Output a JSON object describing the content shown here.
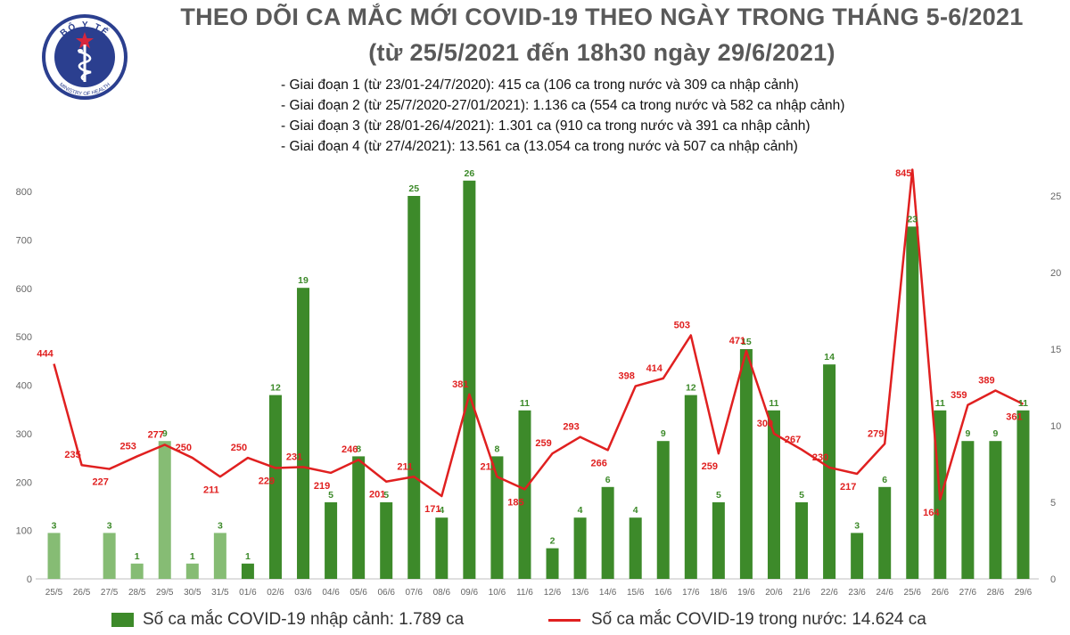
{
  "header": {
    "title_line1": "THEO DÕI CA MẮC MỚI COVID-19 THEO NGÀY TRONG THÁNG 5-6/2021",
    "title_line2": "(từ 25/5/2021 đến 18h30 ngày 29/6/2021)",
    "phases": [
      "- Giai đoạn 1 (từ 23/01-24/7/2020): 415 ca (106 ca trong nước và 309 ca nhập cảnh)",
      "- Giai đoạn 2 (từ 25/7/2020-27/01/2021): 1.136 ca (554 ca trong nước và 582 ca nhập cảnh)",
      "- Giai đoạn 3 (từ 28/01-26/4/2021): 1.301 ca (910 ca trong nước và 391 ca nhập cảnh)",
      "- Giai đoạn 4 (từ 27/4/2021): 13.561 ca (13.054 ca trong nước và 507 ca nhập cảnh)"
    ]
  },
  "logo": {
    "top_text": "BỘ Y TẾ",
    "bottom_text": "MINISTRY OF HEALTH",
    "color": "#2b3f8f"
  },
  "colors": {
    "bar_may": "#86bc74",
    "bar_june": "#3d8a2a",
    "line": "#e02020",
    "bar_label": "#3d8a2a",
    "line_label": "#e02020",
    "axis_text": "#666666"
  },
  "chart_data": {
    "type": "bar+line",
    "categories": [
      "25/5",
      "26/5",
      "27/5",
      "28/5",
      "29/5",
      "30/5",
      "31/5",
      "01/6",
      "02/6",
      "03/6",
      "04/6",
      "05/6",
      "06/6",
      "07/6",
      "08/6",
      "09/6",
      "10/6",
      "11/6",
      "12/6",
      "13/6",
      "14/6",
      "15/6",
      "16/6",
      "17/6",
      "18/6",
      "19/6",
      "20/6",
      "21/6",
      "22/6",
      "23/6",
      "24/6",
      "25/6",
      "26/6",
      "27/6",
      "28/6",
      "29/6"
    ],
    "series": [
      {
        "name": "Số ca mắc COVID-19 nhập cảnh: 1.789 ca",
        "type": "bar",
        "axis": "right",
        "values": [
          3,
          null,
          3,
          1,
          9,
          1,
          3,
          1,
          12,
          19,
          5,
          8,
          5,
          25,
          4,
          26,
          8,
          11,
          2,
          4,
          6,
          4,
          9,
          12,
          5,
          15,
          11,
          5,
          14,
          3,
          6,
          23,
          11,
          9,
          9,
          11
        ]
      },
      {
        "name": "Số ca mắc COVID-19 trong nước: 14.624 ca",
        "type": "line",
        "axis": "left",
        "values": [
          444,
          235,
          227,
          253,
          277,
          250,
          211,
          250,
          229,
          231,
          219,
          246,
          201,
          211,
          171,
          381,
          211,
          185,
          259,
          293,
          266,
          398,
          414,
          503,
          259,
          471,
          300,
          267,
          230,
          217,
          279,
          845,
          164,
          359,
          389,
          361
        ]
      }
    ],
    "y_left": {
      "min": 0,
      "max": 800,
      "ticks": [
        "0",
        "100",
        "200",
        "300",
        "400",
        "500",
        "600",
        "700",
        "800"
      ]
    },
    "y_right": {
      "min": 0,
      "max": 25,
      "ticks": [
        "0",
        "5",
        "10",
        "15",
        "20",
        "25"
      ]
    },
    "legend_position": "bottom"
  }
}
